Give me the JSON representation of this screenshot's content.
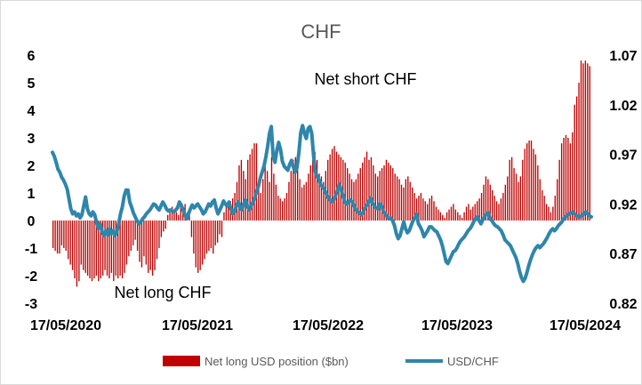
{
  "chart_data": {
    "type": "bar+line",
    "title": "CHF",
    "x_tick_labels": [
      "17/05/2020",
      "17/05/2021",
      "17/05/2022",
      "17/05/2023",
      "17/05/2024"
    ],
    "y_left": {
      "ticks": [
        6,
        5,
        4,
        3,
        2,
        1,
        0,
        -1,
        -2,
        -3
      ],
      "range": [
        -3,
        6
      ]
    },
    "y_right": {
      "ticks": [
        "1.07",
        "1.02",
        "0.97",
        "0.92",
        "0.87",
        "0.82"
      ],
      "range": [
        0.82,
        1.07
      ]
    },
    "annotations": [
      "Net short CHF",
      "Net long CHF"
    ],
    "series": [
      {
        "name": "Net long USD position ($bn)",
        "type": "bar",
        "color": "#c00000",
        "axis": "left",
        "values": [
          -1.0,
          -1.1,
          -1.2,
          -1.2,
          -0.9,
          -1.0,
          -1.1,
          -1.4,
          -1.6,
          -1.8,
          -2.1,
          -2.4,
          -2.2,
          -1.6,
          -1.8,
          -1.9,
          -2.0,
          -2.1,
          -2.2,
          -2.1,
          -2.0,
          -2.2,
          -2.1,
          -2.0,
          -1.8,
          -2.0,
          -2.1,
          -1.9,
          -2.2,
          -2.0,
          -2.1,
          -2.0,
          -2.1,
          -1.9,
          -1.6,
          -1.3,
          -1.1,
          -0.9,
          -0.7,
          -1.1,
          -1.5,
          -1.7,
          -1.3,
          -1.6,
          -1.9,
          -1.8,
          -2.0,
          -1.8,
          -1.4,
          -1.0,
          -0.6,
          -0.4,
          -0.3,
          0.2,
          0.3,
          0.5,
          0.4,
          0.3,
          0.2,
          0.5,
          0.4,
          0.6,
          0.3,
          0.2,
          -0.6,
          -1.2,
          -1.7,
          -1.9,
          -1.8,
          -1.6,
          -1.4,
          -1.2,
          -1.1,
          -1.0,
          -1.2,
          -0.9,
          -0.8,
          -0.5,
          -0.6,
          0.3,
          0.5,
          0.6,
          0.7,
          0.8,
          1.0,
          1.4,
          2.0,
          2.2,
          1.8,
          1.5,
          2.2,
          2.4,
          2.6,
          2.8,
          2.8,
          1.3,
          1.0,
          1.5,
          2.0,
          1.8,
          1.4,
          2.3,
          1.7,
          1.3,
          0.9,
          0.8,
          0.7,
          0.8,
          1.0,
          1.4,
          1.8,
          2.2,
          2.3,
          2.1,
          1.5,
          1.2,
          1.3,
          1.4,
          1.7,
          2.0,
          2.2,
          2.5,
          2.2,
          1.7,
          1.6,
          1.4,
          1.8,
          2.2,
          2.4,
          2.6,
          2.7,
          2.5,
          2.4,
          2.3,
          2.2,
          2.1,
          1.9,
          1.7,
          1.5,
          1.4,
          1.5,
          1.7,
          1.9,
          2.1,
          2.3,
          2.5,
          2.2,
          2.3,
          2.0,
          1.7,
          1.6,
          1.8,
          1.9,
          2.0,
          2.2,
          2.1,
          2.0,
          1.9,
          1.7,
          1.6,
          1.5,
          1.3,
          1.2,
          1.5,
          1.6,
          1.4,
          1.2,
          1.0,
          0.8,
          0.9,
          1.0,
          0.8,
          0.7,
          0.6,
          0.8,
          0.9,
          0.7,
          0.5,
          0.4,
          0.3,
          0.2,
          0.1,
          0.3,
          0.4,
          0.5,
          0.6,
          0.4,
          0.3,
          0.2,
          0.1,
          0.3,
          0.5,
          0.6,
          0.4,
          0.5,
          0.6,
          0.7,
          0.8,
          1.0,
          1.3,
          1.6,
          1.5,
          1.3,
          1.1,
          0.9,
          0.7,
          0.6,
          0.8,
          1.0,
          1.3,
          1.6,
          2.2,
          2.3,
          1.9,
          1.7,
          1.4,
          1.6,
          2.2,
          2.6,
          2.8,
          2.9,
          2.9,
          2.6,
          2.4,
          2.0,
          1.5,
          1.1,
          0.9,
          0.6,
          0.5,
          0.3,
          0.5,
          0.9,
          1.5,
          2.2,
          2.8,
          3.0,
          3.1,
          3.0,
          2.8,
          3.2,
          4.2,
          4.5,
          5.0,
          5.8,
          5.7,
          5.8,
          5.7,
          5.6
        ]
      },
      {
        "name": "USD/CHF",
        "type": "line",
        "color": "#2e86ab",
        "axis": "right",
        "values": [
          0.972,
          0.968,
          0.962,
          0.955,
          0.952,
          0.947,
          0.944,
          0.94,
          0.935,
          0.925,
          0.915,
          0.91,
          0.912,
          0.908,
          0.91,
          0.906,
          0.909,
          0.918,
          0.927,
          0.915,
          0.91,
          0.908,
          0.912,
          0.909,
          0.901,
          0.895,
          0.9,
          0.892,
          0.888,
          0.893,
          0.889,
          0.895,
          0.89,
          0.893,
          0.888,
          0.892,
          0.9,
          0.91,
          0.917,
          0.928,
          0.934,
          0.934,
          0.922,
          0.917,
          0.911,
          0.907,
          0.903,
          0.9,
          0.902,
          0.905,
          0.907,
          0.91,
          0.912,
          0.914,
          0.917,
          0.92,
          0.919,
          0.916,
          0.914,
          0.918,
          0.922,
          0.919,
          0.915,
          0.913,
          0.914,
          0.913,
          0.912,
          0.914,
          0.916,
          0.922,
          0.919,
          0.914,
          0.909,
          0.905,
          0.91,
          0.915,
          0.919,
          0.916,
          0.918,
          0.92,
          0.917,
          0.914,
          0.91,
          0.912,
          0.916,
          0.92,
          0.918,
          0.922,
          0.924,
          0.916,
          0.91,
          0.914,
          0.918,
          0.923,
          0.92,
          0.918,
          0.922,
          0.915,
          0.91,
          0.912,
          0.918,
          0.922,
          0.917,
          0.914,
          0.92,
          0.924,
          0.918,
          0.914,
          0.918,
          0.922,
          0.926,
          0.933,
          0.938,
          0.946,
          0.952,
          0.958,
          0.967,
          0.978,
          0.991,
          0.998,
          0.968,
          0.962,
          0.974,
          0.982,
          0.975,
          0.963,
          0.958,
          0.956,
          0.954,
          0.96,
          0.964,
          0.957,
          0.952,
          0.957,
          0.972,
          0.992,
          0.999,
          0.991,
          0.986,
          0.996,
          0.998,
          0.991,
          0.968,
          0.952,
          0.947,
          0.944,
          0.939,
          0.937,
          0.934,
          0.93,
          0.926,
          0.924,
          0.922,
          0.924,
          0.929,
          0.934,
          0.94,
          0.934,
          0.928,
          0.922,
          0.92,
          0.922,
          0.924,
          0.922,
          0.918,
          0.914,
          0.912,
          0.911,
          0.909,
          0.912,
          0.916,
          0.919,
          0.922,
          0.926,
          0.921,
          0.918,
          0.916,
          0.915,
          0.92,
          0.918,
          0.912,
          0.91,
          0.907,
          0.905,
          0.906,
          0.903,
          0.898,
          0.89,
          0.885,
          0.888,
          0.895,
          0.902,
          0.895,
          0.891,
          0.893,
          0.898,
          0.903,
          0.906,
          0.91,
          0.9,
          0.897,
          0.893,
          0.887,
          0.89,
          0.893,
          0.897,
          0.897,
          0.895,
          0.893,
          0.892,
          0.888,
          0.884,
          0.878,
          0.87,
          0.862,
          0.86,
          0.864,
          0.868,
          0.872,
          0.873,
          0.876,
          0.88,
          0.883,
          0.885,
          0.887,
          0.89,
          0.893,
          0.895,
          0.898,
          0.902,
          0.905,
          0.907,
          0.903,
          0.9,
          0.904,
          0.907,
          0.91,
          0.911,
          0.905,
          0.903,
          0.9,
          0.898,
          0.897,
          0.895,
          0.893,
          0.889,
          0.884,
          0.882,
          0.88,
          0.878,
          0.874,
          0.87,
          0.866,
          0.86,
          0.852,
          0.846,
          0.842,
          0.845,
          0.851,
          0.858,
          0.864,
          0.869,
          0.873,
          0.876,
          0.878,
          0.876,
          0.878,
          0.88,
          0.883,
          0.886,
          0.89,
          0.893,
          0.895,
          0.893,
          0.895,
          0.898,
          0.9,
          0.902,
          0.905,
          0.907,
          0.909,
          0.91,
          0.911,
          0.912,
          0.91,
          0.908,
          0.907,
          0.907,
          0.909,
          0.91,
          0.912,
          0.91,
          0.908,
          0.907
        ]
      }
    ]
  }
}
